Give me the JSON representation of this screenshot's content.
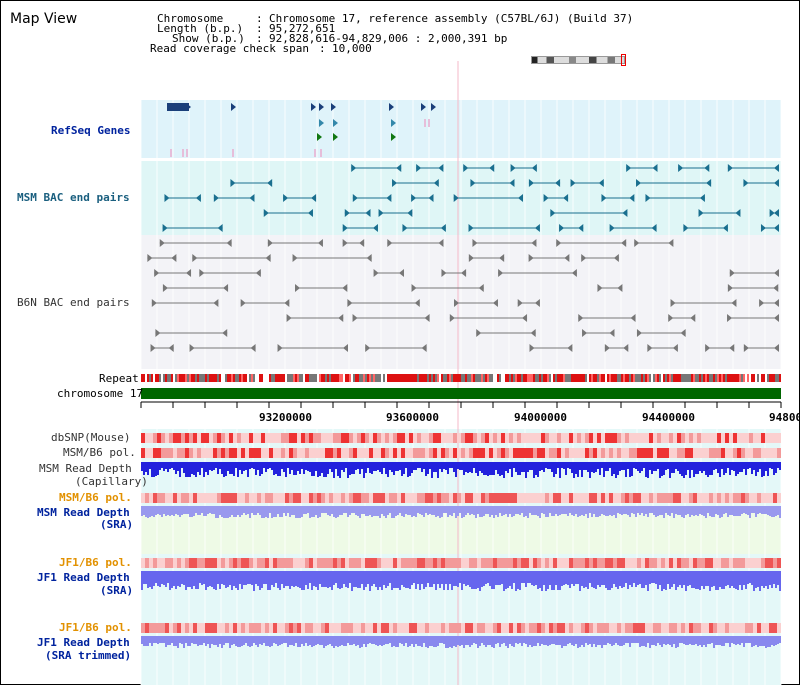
{
  "title": "Map View",
  "info": {
    "chromosome_label": "Chromosome",
    "chromosome_value": "Chromosome 17, reference assembly (C57BL/6J) (Build 37)",
    "length_label": "Length (b.p.)",
    "length_value": "95,272,651",
    "show_label": "Show (b.p.)",
    "show_value": "92,828,616-94,829,006 : 2,000,391 bp",
    "span_label": "Read coverage check span",
    "span_value": "10,000"
  },
  "tracks": {
    "refseq": "RefSeq Genes",
    "msm_bac": "MSM BAC end pairs",
    "b6n_bac": "B6N BAC end pairs",
    "repeat": "Repeat",
    "chromosome": "chromosome 17",
    "dbsnp": "dbSNP(Mouse)",
    "msm_pol_1": "MSM/B6 pol.",
    "msm_depth_cap_1": "MSM Read Depth",
    "msm_depth_cap_2": "(Capillary)",
    "msm_pol_2": "MSM/B6 pol.",
    "msm_depth_sra_1": "MSM Read Depth",
    "msm_depth_sra_2": "(SRA)",
    "jf1_pol_1": "JF1/B6 pol.",
    "jf1_depth_1": "JF1 Read Depth",
    "jf1_depth_2": "(SRA)",
    "jf1_pol_2": "JF1/B6 pol.",
    "jf1_trim_1": "JF1 Read Depth",
    "jf1_trim_2": "(SRA trimmed)"
  },
  "axis": {
    "ticks": [
      "93200000",
      "93600000",
      "94000000",
      "94400000",
      "94800"
    ]
  },
  "colors": {
    "refseq_bg": "#dff3fa",
    "msm_bac_bg": "#dff6f6",
    "chromosome_bar": "#006600",
    "depth_blue": "#3333ee",
    "depth_light": "#8888ee",
    "pol_red": "#ee3333"
  }
}
